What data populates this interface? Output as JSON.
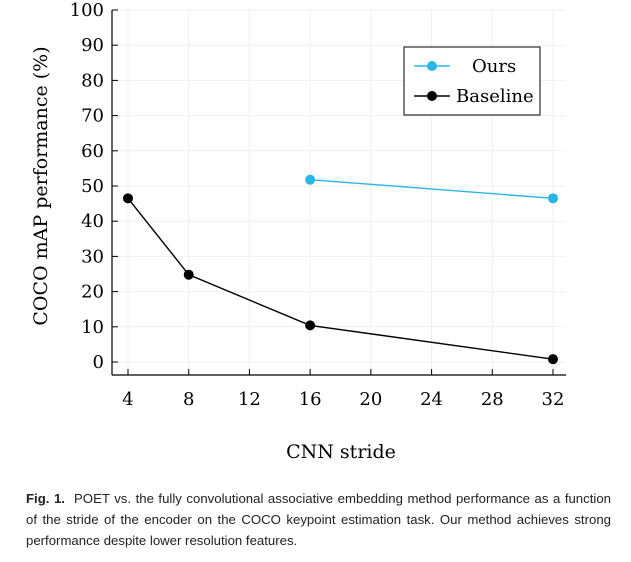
{
  "chart_data": {
    "type": "line",
    "xlabel": "CNN stride",
    "ylabel": "COCO mAP performance (%)",
    "xlim": [
      4,
      32
    ],
    "ylim": [
      0,
      100
    ],
    "xticks": [
      4,
      8,
      12,
      16,
      20,
      24,
      28,
      32
    ],
    "yticks": [
      0,
      10,
      20,
      30,
      40,
      50,
      60,
      70,
      80,
      90,
      100
    ],
    "grid": true,
    "legend_position": "top-right",
    "series": [
      {
        "name": "Ours",
        "color": "#29b6e6",
        "x": [
          16,
          32
        ],
        "y": [
          51.8,
          46.5
        ]
      },
      {
        "name": "Baseline",
        "color": "#000000",
        "x": [
          4,
          8,
          16,
          32
        ],
        "y": [
          46.5,
          24.8,
          10.4,
          0.8
        ]
      }
    ]
  },
  "caption": {
    "label": "Fig. 1.",
    "text": "POET vs.  the fully convolutional associative embedding method performance as a function of the stride of the encoder on the COCO keypoint estimation task. Our method achieves strong performance despite lower resolution features."
  }
}
